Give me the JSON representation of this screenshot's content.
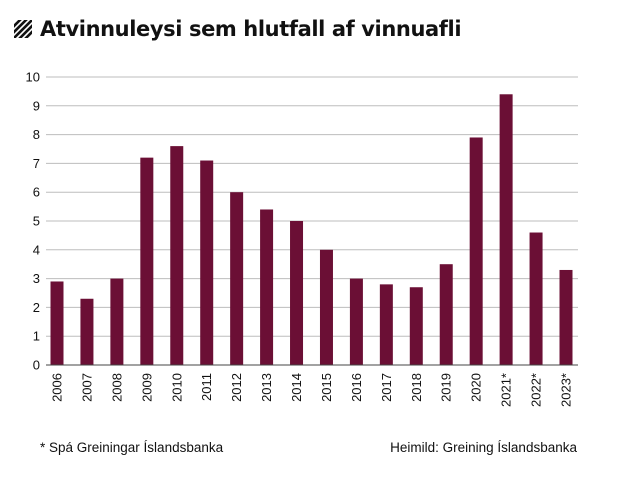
{
  "title": "Atvinnuleysi sem hlutfall af vinnuafli",
  "footnote_left": "* Spá Greiningar Íslandsbanka",
  "footnote_right": "Heimild: Greining Íslandsbanka",
  "colors": {
    "bar": "#6b0f35",
    "grid": "#bdbdbd",
    "axis": "#444444",
    "text": "#111111"
  },
  "chart_data": {
    "type": "bar",
    "title": "Atvinnuleysi sem hlutfall af vinnuafli",
    "xlabel": "",
    "ylabel": "",
    "categories": [
      "2006",
      "2007",
      "2008",
      "2009",
      "2010",
      "2011",
      "2012",
      "2013",
      "2014",
      "2015",
      "2016",
      "2017",
      "2018",
      "2019",
      "2020",
      "2021*",
      "2022*",
      "2023*"
    ],
    "values": [
      2.9,
      2.3,
      3.0,
      7.2,
      7.6,
      7.1,
      6.0,
      5.4,
      5.0,
      4.0,
      3.0,
      2.8,
      2.7,
      3.5,
      7.9,
      9.4,
      4.6,
      3.3
    ],
    "ylim": [
      0,
      10
    ],
    "yticks": [
      0,
      1,
      2,
      3,
      4,
      5,
      6,
      7,
      8,
      9,
      10
    ],
    "grid": true,
    "legend": "none"
  }
}
